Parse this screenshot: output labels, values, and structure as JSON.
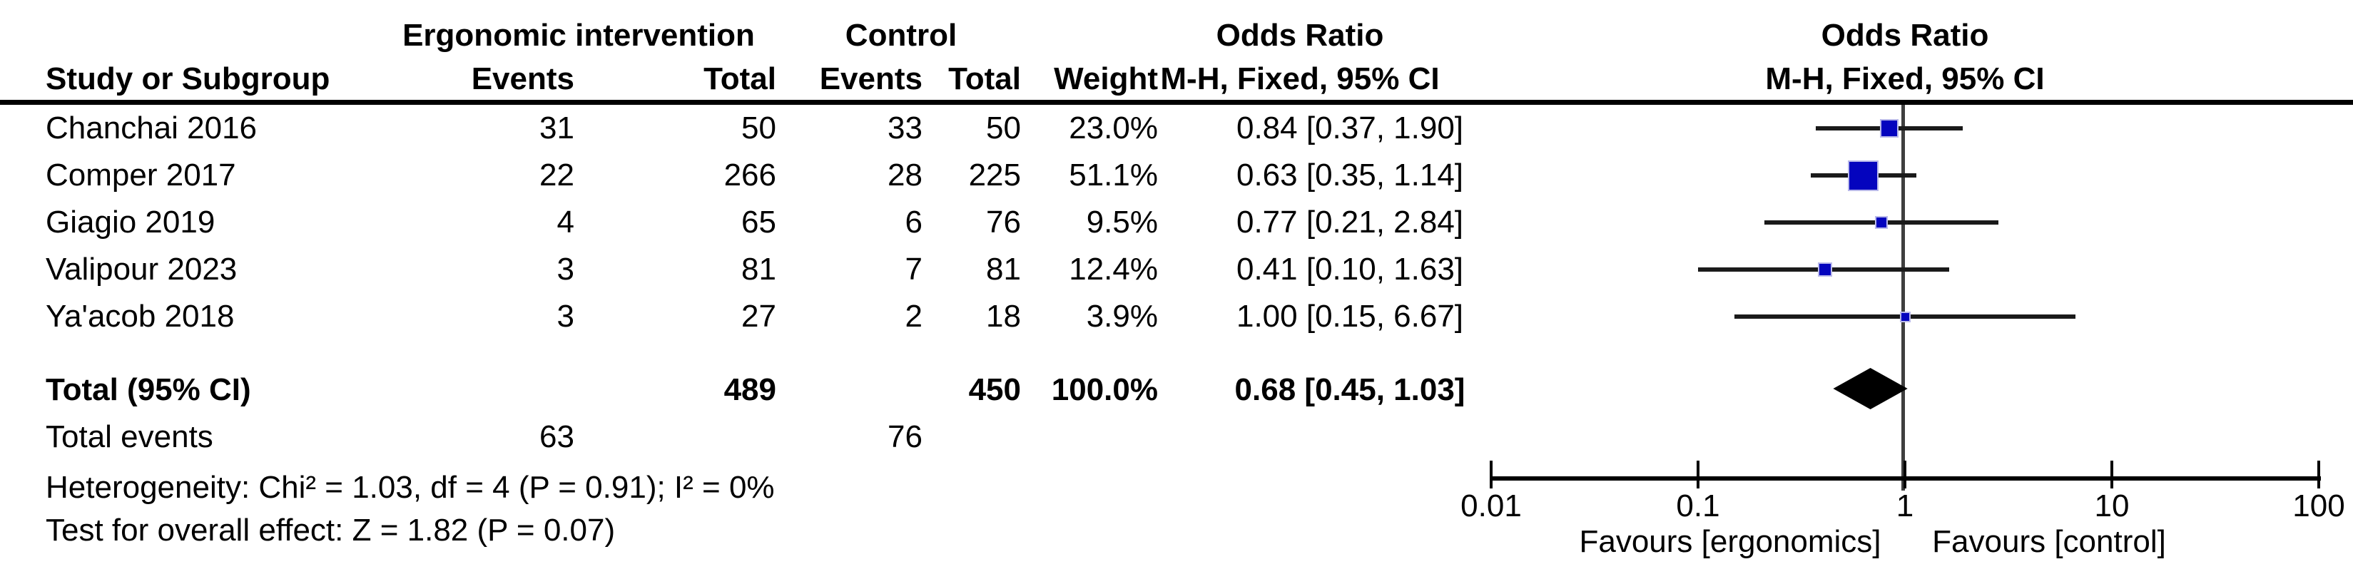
{
  "table": {
    "group1_header": "Ergonomic intervention",
    "group2_header": "Control",
    "odds_ratio_header": "Odds Ratio",
    "odds_ratio_plot_header": "Odds Ratio",
    "col_study": "Study or Subgroup",
    "col_events1": "Events",
    "col_total1": "Total",
    "col_events2": "Events",
    "col_total2": "Total",
    "col_weight": "Weight",
    "col_ci": "M-H, Fixed, 95% CI",
    "col_ci_plot": "M-H, Fixed, 95% CI",
    "rows": [
      {
        "study": "Chanchai 2016",
        "events1": "31",
        "total1": "50",
        "events2": "33",
        "total2": "50",
        "weight": "23.0%",
        "ci": "0.84 [0.37, 1.90]"
      },
      {
        "study": "Comper 2017",
        "events1": "22",
        "total1": "266",
        "events2": "28",
        "total2": "225",
        "weight": "51.1%",
        "ci": "0.63 [0.35, 1.14]"
      },
      {
        "study": "Giagio 2019",
        "events1": "4",
        "total1": "65",
        "events2": "6",
        "total2": "76",
        "weight": "9.5%",
        "ci": "0.77 [0.21, 2.84]"
      },
      {
        "study": "Valipour 2023",
        "events1": "3",
        "total1": "81",
        "events2": "7",
        "total2": "81",
        "weight": "12.4%",
        "ci": "0.41 [0.10, 1.63]"
      },
      {
        "study": "Ya'acob 2018",
        "events1": "3",
        "total1": "27",
        "events2": "2",
        "total2": "18",
        "weight": "3.9%",
        "ci": "1.00 [0.15, 6.67]"
      }
    ],
    "total_row": {
      "label": "Total (95% CI)",
      "total1": "489",
      "total2": "450",
      "weight": "100.0%",
      "ci": "0.68 [0.45, 1.03]"
    },
    "total_events_row": {
      "label": "Total events",
      "events1": "63",
      "events2": "76"
    },
    "heterogeneity": "Heterogeneity: Chi² = 1.03, df = 4 (P = 0.91); I² = 0%",
    "overall_effect": "Test for overall effect: Z = 1.82 (P = 0.07)"
  },
  "chart_data": {
    "type": "forest-plot",
    "effect_measure": "Odds Ratio, M-H, Fixed, 95% CI",
    "x_scale": "log10",
    "x_ticks": [
      0.01,
      0.1,
      1,
      10,
      100
    ],
    "x_tick_labels": [
      "0.01",
      "0.1",
      "1",
      "10",
      "100"
    ],
    "null_line_value": 1,
    "favours_left": "Favours [ergonomics]",
    "favours_right": "Favours [control]",
    "studies": [
      {
        "name": "Chanchai 2016",
        "or": 0.84,
        "ci_low": 0.37,
        "ci_high": 1.9,
        "weight_pct": 23.0
      },
      {
        "name": "Comper 2017",
        "or": 0.63,
        "ci_low": 0.35,
        "ci_high": 1.14,
        "weight_pct": 51.1
      },
      {
        "name": "Giagio 2019",
        "or": 0.77,
        "ci_low": 0.21,
        "ci_high": 2.84,
        "weight_pct": 9.5
      },
      {
        "name": "Valipour 2023",
        "or": 0.41,
        "ci_low": 0.1,
        "ci_high": 1.63,
        "weight_pct": 12.4
      },
      {
        "name": "Ya'acob 2018",
        "or": 1.0,
        "ci_low": 0.15,
        "ci_high": 6.67,
        "weight_pct": 3.9
      }
    ],
    "total": {
      "label": "Total (95% CI)",
      "or": 0.68,
      "ci_low": 0.45,
      "ci_high": 1.03
    },
    "marker_color": "#0404BE",
    "ci_line_color": "#1a1a1a",
    "summary_color": "#000000"
  }
}
